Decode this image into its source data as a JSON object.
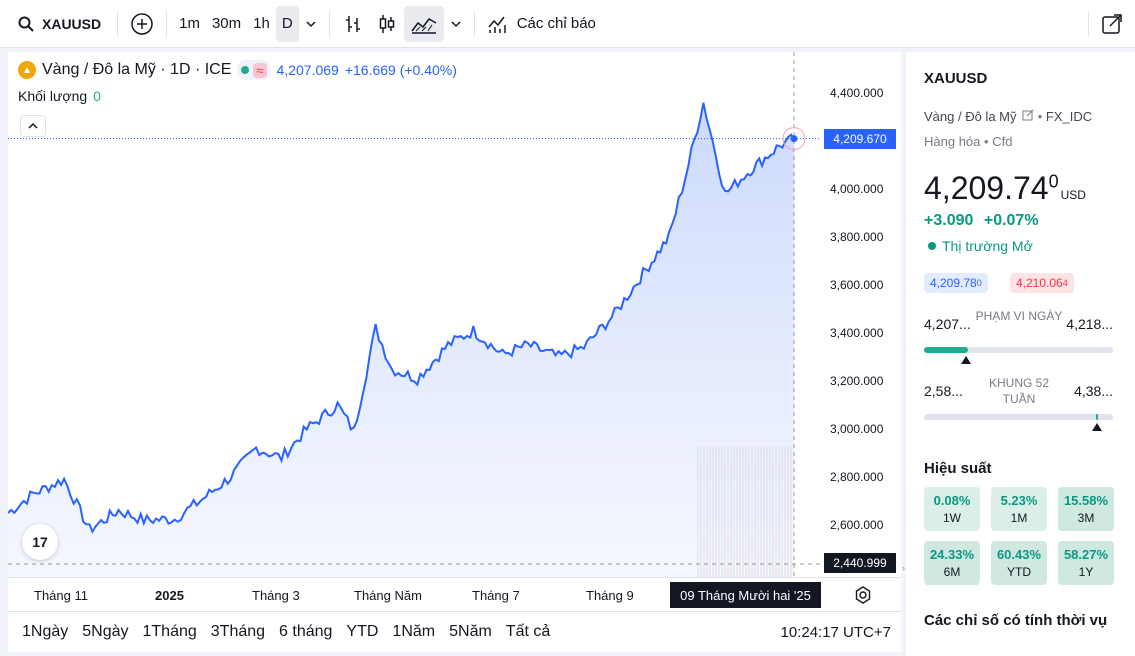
{
  "toolbar": {
    "symbol": "XAUUSD",
    "intervals": [
      "1m",
      "30m",
      "1h",
      "D"
    ],
    "indicators_label": "Các chỉ báo"
  },
  "legend": {
    "title": "Vàng / Đô la Mỹ · 1D · ICE",
    "price": "4,207.069",
    "change": "+16.669 (+0.40%)",
    "volume_label": "Khối lượng",
    "volume_value": "0"
  },
  "price_axis": {
    "ticks": [
      "4,400.000",
      "4,000.000",
      "3,800.000",
      "3,600.000",
      "3,400.000",
      "3,200.000",
      "3,000.000",
      "2,800.000",
      "2,600.000"
    ],
    "current_tag": "4,209.670",
    "crosshair_tag": "2,440.999"
  },
  "time_axis": {
    "labels": [
      "Tháng 11",
      "2025",
      "Tháng 3",
      "Tháng Năm",
      "Tháng 7",
      "Tháng 9"
    ],
    "crosshair_label": "09 Tháng Mười hai '25"
  },
  "range_bar": {
    "ranges": [
      "1Ngày",
      "5Ngày",
      "1Tháng",
      "3Tháng",
      "6 tháng",
      "YTD",
      "1Năm",
      "5Năm",
      "Tất cả"
    ],
    "clock": "10:24:17 UTC+7"
  },
  "right_panel": {
    "symbol": "XAUUSD",
    "description": "Vàng / Đô la Mỹ",
    "source": "FX_IDC",
    "category": "Hàng hóa",
    "type": "Cfd",
    "price_main": "4,209.74",
    "price_sup": "0",
    "currency": "USD",
    "change": "+3.090",
    "change_pct": "+0.07%",
    "market_status": "Thị trường Mở",
    "bid": "4,209.78",
    "bid_sup": "0",
    "ask": "4,210.06",
    "ask_sup": "4",
    "day_range_label": "PHẠM VI NGÀY",
    "day_low": "4,207...",
    "day_high": "4,218...",
    "week52_label": "KHUNG 52 TUẦN",
    "week52_low": "2,58...",
    "week52_high": "4,38...",
    "performance_title": "Hiệu suất",
    "performance": [
      {
        "value": "0.08%",
        "label": "1W"
      },
      {
        "value": "5.23%",
        "label": "1M"
      },
      {
        "value": "15.58%",
        "label": "3M"
      },
      {
        "value": "24.33%",
        "label": "6M"
      },
      {
        "value": "60.43%",
        "label": "YTD"
      },
      {
        "value": "58.27%",
        "label": "1Y"
      }
    ],
    "seasonal_title": "Các chỉ số có tính thời vụ"
  },
  "chart_data": {
    "type": "area",
    "x": [
      "2024-10-01",
      "2024-10-15",
      "2024-11-01",
      "2024-11-15",
      "2024-12-01",
      "2024-12-15",
      "2025-01-01",
      "2025-01-15",
      "2025-02-01",
      "2025-02-15",
      "2025-03-01",
      "2025-03-15",
      "2025-04-01",
      "2025-04-10",
      "2025-04-22",
      "2025-05-01",
      "2025-05-15",
      "2025-06-01",
      "2025-06-15",
      "2025-07-01",
      "2025-07-15",
      "2025-08-01",
      "2025-08-15",
      "2025-09-01",
      "2025-09-15",
      "2025-10-01",
      "2025-10-10",
      "2025-10-20",
      "2025-11-01",
      "2025-11-15",
      "2025-12-01",
      "2025-12-09"
    ],
    "values": [
      2650,
      2730,
      2790,
      2580,
      2660,
      2620,
      2625,
      2700,
      2800,
      2920,
      2880,
      3000,
      3100,
      2990,
      3420,
      3250,
      3210,
      3350,
      3410,
      3310,
      3350,
      3300,
      3340,
      3480,
      3630,
      3800,
      4050,
      4360,
      3980,
      4080,
      4180,
      4209.67
    ],
    "ylim": [
      2440,
      4520
    ],
    "current_price": 4209.67,
    "price_axis_unit": "USD"
  }
}
